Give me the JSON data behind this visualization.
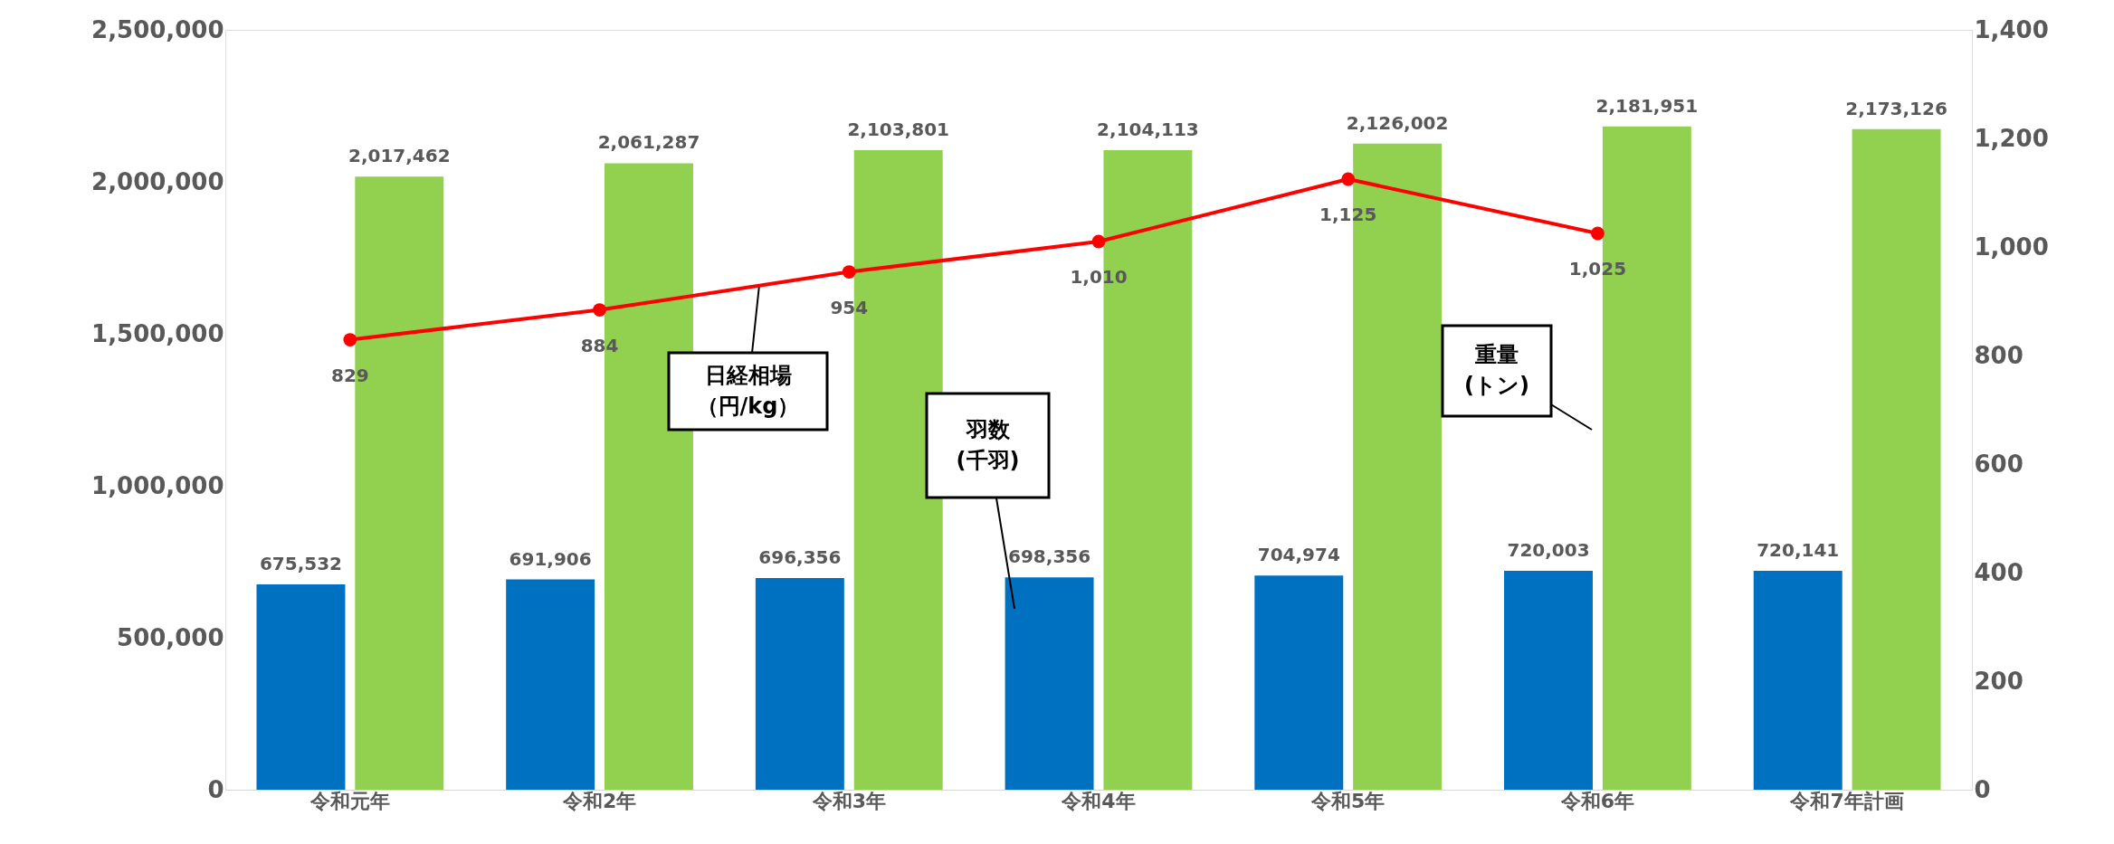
{
  "chart_data": {
    "type": "bar",
    "categories": [
      "令和元年",
      "令和2年",
      "令和3年",
      "令和4年",
      "令和5年",
      "令和6年",
      "令和7年計画"
    ],
    "series": [
      {
        "name": "羽数(千羽)",
        "color": "#0070c0",
        "values": [
          675532,
          691906,
          696356,
          698356,
          704974,
          720003,
          720141
        ],
        "value_labels": [
          "675,532",
          "691,906",
          "696,356",
          "698,356",
          "704,974",
          "720,003",
          "720,141"
        ]
      },
      {
        "name": "重量(トン)",
        "color": "#92d050",
        "values": [
          2017462,
          2061287,
          2103801,
          2104113,
          2126002,
          2181951,
          2173126
        ],
        "value_labels": [
          "2,017,462",
          "2,061,287",
          "2,103,801",
          "2,104,113",
          "2,126,002",
          "2,181,951",
          "2,173,126"
        ]
      },
      {
        "name": "日経相場（円/kg）",
        "type": "line",
        "axis": "y2",
        "color": "#ff0000",
        "values": [
          829,
          884,
          954,
          1010,
          1125,
          1025,
          null
        ],
        "value_labels": [
          "829",
          "884",
          "954",
          "1,010",
          "1,125",
          "1,025",
          null
        ]
      }
    ],
    "ylim": [
      0,
      2500000
    ],
    "yticks": [
      {
        "value": 0,
        "label": "0"
      },
      {
        "value": 500000,
        "label": "500,000"
      },
      {
        "value": 1000000,
        "label": "1,000,000"
      },
      {
        "value": 1500000,
        "label": "1,500,000"
      },
      {
        "value": 2000000,
        "label": "2,000,000"
      },
      {
        "value": 2500000,
        "label": "2,500,000"
      }
    ],
    "y2lim": [
      0,
      1400
    ],
    "y2ticks": [
      {
        "value": 0,
        "label": "0"
      },
      {
        "value": 200,
        "label": "200"
      },
      {
        "value": 400,
        "label": "400"
      },
      {
        "value": 600,
        "label": "600"
      },
      {
        "value": 800,
        "label": "800"
      },
      {
        "value": 1000,
        "label": "1,000"
      },
      {
        "value": 1200,
        "label": "1,200"
      },
      {
        "value": 1400,
        "label": "1,400"
      }
    ],
    "marker": "circle",
    "line_style": "solid",
    "grid": false
  }
}
